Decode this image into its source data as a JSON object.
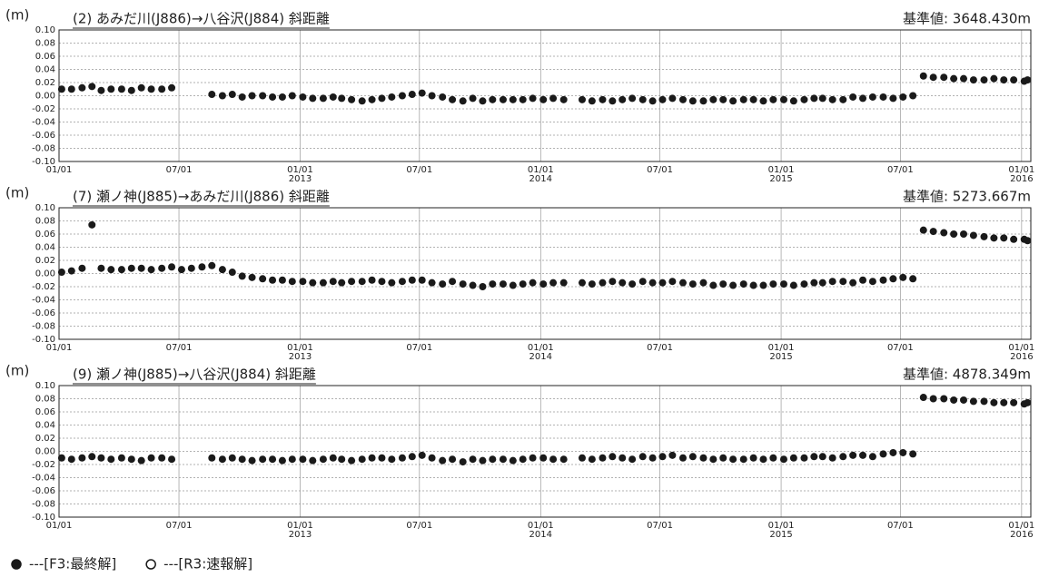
{
  "chart_data": [
    {
      "type": "scatter",
      "ylabel": "(m)",
      "title": "(2) あみだ川(J886)→八谷沢(J884) 斜距離",
      "reference": "基準値: 3648.430m",
      "x": [
        "2012-01-05",
        "2012-01-20",
        "2012-02-05",
        "2012-02-20",
        "2012-03-05",
        "2012-03-20",
        "2012-04-05",
        "2012-04-20",
        "2012-05-05",
        "2012-05-20",
        "2012-06-05",
        "2012-06-20",
        "2012-07-05",
        "2012-07-20",
        "2012-08-05",
        "2012-08-20",
        "2012-09-05",
        "2012-09-20",
        "2012-10-05",
        "2012-10-20",
        "2012-11-05",
        "2012-11-20",
        "2012-12-05",
        "2012-12-20",
        "2013-01-05",
        "2013-01-20",
        "2013-02-05",
        "2013-02-20",
        "2013-03-05",
        "2013-03-20",
        "2013-04-05",
        "2013-04-20",
        "2013-05-05",
        "2013-05-20",
        "2013-06-05",
        "2013-06-20",
        "2013-07-05",
        "2013-07-20",
        "2013-08-05",
        "2013-08-20",
        "2013-09-05",
        "2013-09-20",
        "2013-10-05",
        "2013-10-20",
        "2013-11-05",
        "2013-11-20",
        "2013-12-05",
        "2013-12-20",
        "2014-01-05",
        "2014-01-20",
        "2014-02-05",
        "2014-02-20",
        "2014-03-05",
        "2014-03-20",
        "2014-04-05",
        "2014-04-20",
        "2014-05-05",
        "2014-05-20",
        "2014-06-05",
        "2014-06-20",
        "2014-07-05",
        "2014-07-20",
        "2014-08-05",
        "2014-08-20",
        "2014-09-05",
        "2014-09-20",
        "2014-10-05",
        "2014-10-20",
        "2014-11-05",
        "2014-11-20",
        "2014-12-05",
        "2014-12-20",
        "2015-01-05",
        "2015-01-20",
        "2015-02-05",
        "2015-02-20",
        "2015-03-05",
        "2015-03-20",
        "2015-04-05",
        "2015-04-20",
        "2015-05-05",
        "2015-05-20",
        "2015-06-05",
        "2015-06-20",
        "2015-07-05",
        "2015-07-20",
        "2015-08-05",
        "2015-08-20",
        "2015-09-05",
        "2015-09-20",
        "2015-10-05",
        "2015-10-20",
        "2015-11-05",
        "2015-11-20",
        "2015-12-05",
        "2015-12-20",
        "2016-01-05",
        "2016-01-10"
      ],
      "series": [
        {
          "color": "#1a1a1a",
          "values": [
            0.01,
            0.01,
            0.012,
            0.014,
            0.008,
            0.01,
            0.01,
            0.008,
            0.012,
            0.01,
            0.01,
            0.012,
            null,
            null,
            null,
            0.002,
            0.0,
            0.002,
            -0.002,
            0.0,
            0.0,
            -0.002,
            -0.002,
            0.0,
            -0.002,
            -0.004,
            -0.004,
            -0.002,
            -0.004,
            -0.006,
            -0.008,
            -0.006,
            -0.004,
            -0.002,
            0.0,
            0.002,
            0.004,
            0.0,
            -0.002,
            -0.006,
            -0.008,
            -0.004,
            -0.008,
            -0.006,
            -0.006,
            -0.006,
            -0.006,
            -0.004,
            -0.006,
            -0.004,
            -0.006,
            null,
            -0.006,
            -0.008,
            -0.006,
            -0.008,
            -0.006,
            -0.004,
            -0.006,
            -0.008,
            -0.006,
            -0.004,
            -0.006,
            -0.008,
            -0.008,
            -0.006,
            -0.006,
            -0.008,
            -0.006,
            -0.006,
            -0.008,
            -0.006,
            -0.006,
            -0.008,
            -0.006,
            -0.004,
            -0.004,
            -0.006,
            -0.006,
            -0.002,
            -0.004,
            -0.002,
            -0.002,
            -0.004,
            -0.002,
            0.0,
            0.03,
            0.028,
            0.028,
            0.026,
            0.026,
            0.024,
            0.024,
            0.026,
            0.024,
            0.024,
            0.022,
            0.024
          ]
        }
      ],
      "xlim": [
        "2012-01-01",
        "2016-01-15"
      ],
      "ylim": [
        -0.1,
        0.1
      ],
      "grid": true,
      "xticks": [
        {
          "value": "2012-01-01",
          "label": "01/01"
        },
        {
          "value": "2012-07-01",
          "label": "07/01"
        },
        {
          "value": "2013-01-01",
          "label": "01/01",
          "sublabel": "2013"
        },
        {
          "value": "2013-07-01",
          "label": "07/01"
        },
        {
          "value": "2014-01-01",
          "label": "01/01",
          "sublabel": "2014"
        },
        {
          "value": "2014-07-01",
          "label": "07/01"
        },
        {
          "value": "2015-01-01",
          "label": "01/01",
          "sublabel": "2015"
        },
        {
          "value": "2015-07-01",
          "label": "07/01"
        },
        {
          "value": "2016-01-01",
          "label": "01/01",
          "sublabel": "2016"
        }
      ],
      "yticks": [
        {
          "value": 0.1,
          "label": "0.10"
        },
        {
          "value": 0.08,
          "label": "0.08"
        },
        {
          "value": 0.06,
          "label": "0.06"
        },
        {
          "value": 0.04,
          "label": "0.04"
        },
        {
          "value": 0.02,
          "label": "0.02"
        },
        {
          "value": 0,
          "label": "0.00"
        },
        {
          "value": -0.02,
          "label": "-0.02"
        },
        {
          "value": -0.04,
          "label": "-0.04"
        },
        {
          "value": -0.06,
          "label": "-0.06"
        },
        {
          "value": -0.08,
          "label": "-0.08"
        },
        {
          "value": -0.1,
          "label": "-0.10"
        }
      ]
    },
    {
      "type": "scatter",
      "ylabel": "(m)",
      "title": "(7) 瀬ノ神(J885)→あみだ川(J886) 斜距離",
      "reference": "基準値: 5273.667m",
      "x": [
        "2012-01-05",
        "2012-01-20",
        "2012-02-05",
        "2012-02-20",
        "2012-03-05",
        "2012-03-20",
        "2012-04-05",
        "2012-04-20",
        "2012-05-05",
        "2012-05-20",
        "2012-06-05",
        "2012-06-20",
        "2012-07-05",
        "2012-07-20",
        "2012-08-05",
        "2012-08-20",
        "2012-09-05",
        "2012-09-20",
        "2012-10-05",
        "2012-10-20",
        "2012-11-05",
        "2012-11-20",
        "2012-12-05",
        "2012-12-20",
        "2013-01-05",
        "2013-01-20",
        "2013-02-05",
        "2013-02-20",
        "2013-03-05",
        "2013-03-20",
        "2013-04-05",
        "2013-04-20",
        "2013-05-05",
        "2013-05-20",
        "2013-06-05",
        "2013-06-20",
        "2013-07-05",
        "2013-07-20",
        "2013-08-05",
        "2013-08-20",
        "2013-09-05",
        "2013-09-20",
        "2013-10-05",
        "2013-10-20",
        "2013-11-05",
        "2013-11-20",
        "2013-12-05",
        "2013-12-20",
        "2014-01-05",
        "2014-01-20",
        "2014-02-05",
        "2014-02-20",
        "2014-03-05",
        "2014-03-20",
        "2014-04-05",
        "2014-04-20",
        "2014-05-05",
        "2014-05-20",
        "2014-06-05",
        "2014-06-20",
        "2014-07-05",
        "2014-07-20",
        "2014-08-05",
        "2014-08-20",
        "2014-09-05",
        "2014-09-20",
        "2014-10-05",
        "2014-10-20",
        "2014-11-05",
        "2014-11-20",
        "2014-12-05",
        "2014-12-20",
        "2015-01-05",
        "2015-01-20",
        "2015-02-05",
        "2015-02-20",
        "2015-03-05",
        "2015-03-20",
        "2015-04-05",
        "2015-04-20",
        "2015-05-05",
        "2015-05-20",
        "2015-06-05",
        "2015-06-20",
        "2015-07-05",
        "2015-07-20",
        "2015-08-05",
        "2015-08-20",
        "2015-09-05",
        "2015-09-20",
        "2015-10-05",
        "2015-10-20",
        "2015-11-05",
        "2015-11-20",
        "2015-12-05",
        "2015-12-20",
        "2016-01-05",
        "2016-01-10"
      ],
      "series": [
        {
          "color": "#1a1a1a",
          "values": [
            0.002,
            0.004,
            0.008,
            0.074,
            0.008,
            0.006,
            0.006,
            0.008,
            0.008,
            0.006,
            0.008,
            0.01,
            0.006,
            0.008,
            0.01,
            0.012,
            0.006,
            0.002,
            -0.004,
            -0.006,
            -0.008,
            -0.01,
            -0.01,
            -0.012,
            -0.012,
            -0.014,
            -0.014,
            -0.012,
            -0.014,
            -0.012,
            -0.012,
            -0.01,
            -0.012,
            -0.014,
            -0.012,
            -0.01,
            -0.01,
            -0.014,
            -0.016,
            -0.012,
            -0.016,
            -0.018,
            -0.02,
            -0.016,
            -0.016,
            -0.018,
            -0.016,
            -0.014,
            -0.016,
            -0.014,
            -0.014,
            null,
            -0.014,
            -0.016,
            -0.014,
            -0.012,
            -0.014,
            -0.016,
            -0.012,
            -0.014,
            -0.014,
            -0.012,
            -0.014,
            -0.016,
            -0.014,
            -0.018,
            -0.016,
            -0.018,
            -0.016,
            -0.018,
            -0.018,
            -0.016,
            -0.016,
            -0.018,
            -0.016,
            -0.014,
            -0.014,
            -0.012,
            -0.012,
            -0.014,
            -0.01,
            -0.012,
            -0.01,
            -0.008,
            -0.006,
            -0.008,
            0.066,
            0.064,
            0.062,
            0.06,
            0.06,
            0.058,
            0.056,
            0.054,
            0.054,
            0.052,
            0.052,
            0.05
          ]
        }
      ],
      "xlim": [
        "2012-01-01",
        "2016-01-15"
      ],
      "ylim": [
        -0.1,
        0.1
      ],
      "grid": true,
      "xticks": [
        {
          "value": "2012-01-01",
          "label": "01/01"
        },
        {
          "value": "2012-07-01",
          "label": "07/01"
        },
        {
          "value": "2013-01-01",
          "label": "01/01",
          "sublabel": "2013"
        },
        {
          "value": "2013-07-01",
          "label": "07/01"
        },
        {
          "value": "2014-01-01",
          "label": "01/01",
          "sublabel": "2014"
        },
        {
          "value": "2014-07-01",
          "label": "07/01"
        },
        {
          "value": "2015-01-01",
          "label": "01/01",
          "sublabel": "2015"
        },
        {
          "value": "2015-07-01",
          "label": "07/01"
        },
        {
          "value": "2016-01-01",
          "label": "01/01",
          "sublabel": "2016"
        }
      ],
      "yticks": [
        {
          "value": 0.1,
          "label": "0.10"
        },
        {
          "value": 0.08,
          "label": "0.08"
        },
        {
          "value": 0.06,
          "label": "0.06"
        },
        {
          "value": 0.04,
          "label": "0.04"
        },
        {
          "value": 0.02,
          "label": "0.02"
        },
        {
          "value": 0,
          "label": "0.00"
        },
        {
          "value": -0.02,
          "label": "-0.02"
        },
        {
          "value": -0.04,
          "label": "-0.04"
        },
        {
          "value": -0.06,
          "label": "-0.06"
        },
        {
          "value": -0.08,
          "label": "-0.08"
        },
        {
          "value": -0.1,
          "label": "-0.10"
        }
      ]
    },
    {
      "type": "scatter",
      "ylabel": "(m)",
      "title": "(9) 瀬ノ神(J885)→八谷沢(J884) 斜距離",
      "reference": "基準値: 4878.349m",
      "x": [
        "2012-01-05",
        "2012-01-20",
        "2012-02-05",
        "2012-02-20",
        "2012-03-05",
        "2012-03-20",
        "2012-04-05",
        "2012-04-20",
        "2012-05-05",
        "2012-05-20",
        "2012-06-05",
        "2012-06-20",
        "2012-07-05",
        "2012-07-20",
        "2012-08-05",
        "2012-08-20",
        "2012-09-05",
        "2012-09-20",
        "2012-10-05",
        "2012-10-20",
        "2012-11-05",
        "2012-11-20",
        "2012-12-05",
        "2012-12-20",
        "2013-01-05",
        "2013-01-20",
        "2013-02-05",
        "2013-02-20",
        "2013-03-05",
        "2013-03-20",
        "2013-04-05",
        "2013-04-20",
        "2013-05-05",
        "2013-05-20",
        "2013-06-05",
        "2013-06-20",
        "2013-07-05",
        "2013-07-20",
        "2013-08-05",
        "2013-08-20",
        "2013-09-05",
        "2013-09-20",
        "2013-10-05",
        "2013-10-20",
        "2013-11-05",
        "2013-11-20",
        "2013-12-05",
        "2013-12-20",
        "2014-01-05",
        "2014-01-20",
        "2014-02-05",
        "2014-02-20",
        "2014-03-05",
        "2014-03-20",
        "2014-04-05",
        "2014-04-20",
        "2014-05-05",
        "2014-05-20",
        "2014-06-05",
        "2014-06-20",
        "2014-07-05",
        "2014-07-20",
        "2014-08-05",
        "2014-08-20",
        "2014-09-05",
        "2014-09-20",
        "2014-10-05",
        "2014-10-20",
        "2014-11-05",
        "2014-11-20",
        "2014-12-05",
        "2014-12-20",
        "2015-01-05",
        "2015-01-20",
        "2015-02-05",
        "2015-02-20",
        "2015-03-05",
        "2015-03-20",
        "2015-04-05",
        "2015-04-20",
        "2015-05-05",
        "2015-05-20",
        "2015-06-05",
        "2015-06-20",
        "2015-07-05",
        "2015-07-20",
        "2015-08-05",
        "2015-08-20",
        "2015-09-05",
        "2015-09-20",
        "2015-10-05",
        "2015-10-20",
        "2015-11-05",
        "2015-11-20",
        "2015-12-05",
        "2015-12-20",
        "2016-01-05",
        "2016-01-10"
      ],
      "series": [
        {
          "color": "#1a1a1a",
          "values": [
            -0.01,
            -0.012,
            -0.01,
            -0.008,
            -0.01,
            -0.012,
            -0.01,
            -0.012,
            -0.014,
            -0.01,
            -0.01,
            -0.012,
            null,
            null,
            null,
            -0.01,
            -0.012,
            -0.01,
            -0.012,
            -0.014,
            -0.012,
            -0.012,
            -0.014,
            -0.012,
            -0.012,
            -0.014,
            -0.012,
            -0.01,
            -0.012,
            -0.014,
            -0.012,
            -0.01,
            -0.01,
            -0.012,
            -0.01,
            -0.008,
            -0.006,
            -0.01,
            -0.014,
            -0.012,
            -0.016,
            -0.012,
            -0.014,
            -0.012,
            -0.012,
            -0.014,
            -0.012,
            -0.01,
            -0.01,
            -0.012,
            -0.012,
            null,
            -0.01,
            -0.012,
            -0.01,
            -0.008,
            -0.01,
            -0.012,
            -0.008,
            -0.01,
            -0.008,
            -0.006,
            -0.01,
            -0.008,
            -0.01,
            -0.012,
            -0.01,
            -0.012,
            -0.012,
            -0.01,
            -0.012,
            -0.01,
            -0.012,
            -0.01,
            -0.01,
            -0.008,
            -0.008,
            -0.01,
            -0.008,
            -0.006,
            -0.006,
            -0.008,
            -0.004,
            -0.002,
            -0.002,
            -0.004,
            0.082,
            0.08,
            0.08,
            0.078,
            0.078,
            0.076,
            0.076,
            0.074,
            0.074,
            0.074,
            0.072,
            0.074
          ]
        }
      ],
      "xlim": [
        "2012-01-01",
        "2016-01-15"
      ],
      "ylim": [
        -0.1,
        0.1
      ],
      "grid": true,
      "xticks": [
        {
          "value": "2012-01-01",
          "label": "01/01"
        },
        {
          "value": "2012-07-01",
          "label": "07/01"
        },
        {
          "value": "2013-01-01",
          "label": "01/01",
          "sublabel": "2013"
        },
        {
          "value": "2013-07-01",
          "label": "07/01"
        },
        {
          "value": "2014-01-01",
          "label": "01/01",
          "sublabel": "2014"
        },
        {
          "value": "2014-07-01",
          "label": "07/01"
        },
        {
          "value": "2015-01-01",
          "label": "01/01",
          "sublabel": "2015"
        },
        {
          "value": "2015-07-01",
          "label": "07/01"
        },
        {
          "value": "2016-01-01",
          "label": "01/01",
          "sublabel": "2016"
        }
      ],
      "yticks": [
        {
          "value": 0.1,
          "label": "0.10"
        },
        {
          "value": 0.08,
          "label": "0.08"
        },
        {
          "value": 0.06,
          "label": "0.06"
        },
        {
          "value": 0.04,
          "label": "0.04"
        },
        {
          "value": 0.02,
          "label": "0.02"
        },
        {
          "value": 0,
          "label": "0.00"
        },
        {
          "value": -0.02,
          "label": "-0.02"
        },
        {
          "value": -0.04,
          "label": "-0.04"
        },
        {
          "value": -0.06,
          "label": "-0.06"
        },
        {
          "value": -0.08,
          "label": "-0.08"
        },
        {
          "value": -0.1,
          "label": "-0.10"
        }
      ]
    }
  ],
  "legend": [
    {
      "marker": "filled",
      "label": "---[F3:最終解]"
    },
    {
      "marker": "open",
      "label": "---[R3:速報解]"
    }
  ]
}
